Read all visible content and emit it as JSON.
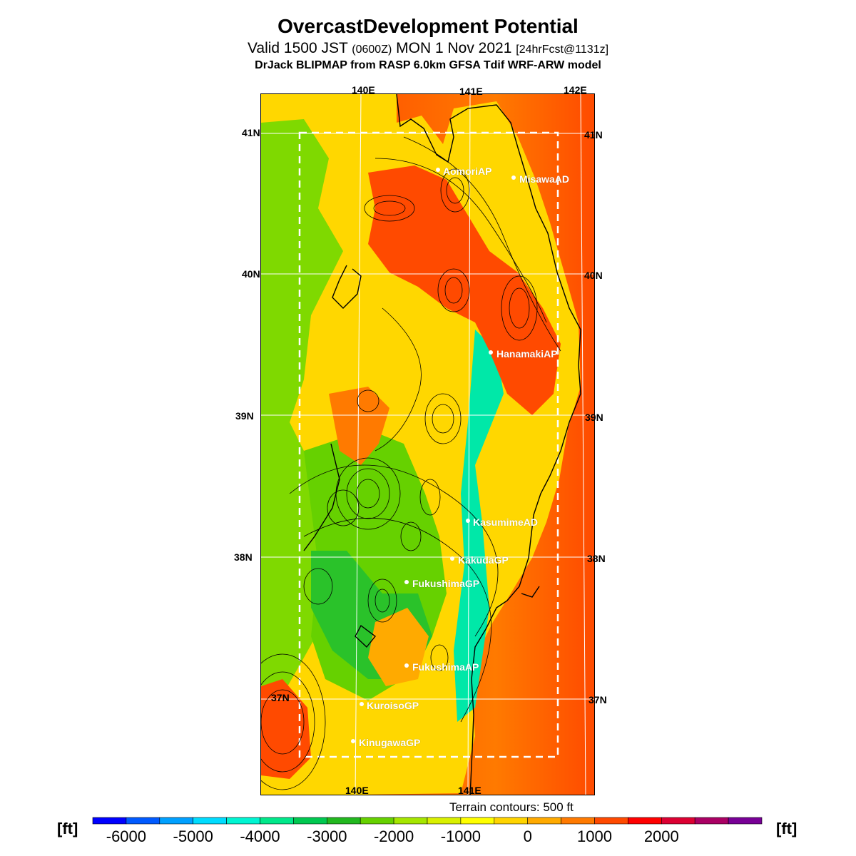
{
  "header": {
    "title": "OvercastDevelopment Potential",
    "valid_prefix": "Valid 1500 JST",
    "utc": "(0600Z)",
    "valid_date": "MON 1 Nov 2021",
    "forecast_tag": "[24hrFcst@1131z]",
    "model_line": "DrJack BLIPMAP from RASP 6.0km GFSA Tdif WRF-ARW model"
  },
  "map": {
    "lon_labels_top": [
      "140E",
      "141E",
      "142E"
    ],
    "lon_labels_bottom": [
      "140E",
      "141E"
    ],
    "lat_labels_left": [
      "41N",
      "40N",
      "39N",
      "38N",
      "37N"
    ],
    "lat_labels_right": [
      "41N",
      "40N",
      "39N",
      "38N",
      "37N"
    ],
    "stations": [
      "AomoriAP",
      "MisawaAD",
      "HanamakiAP",
      "KasumimeAD",
      "KakudaGP",
      "FukushimaGP",
      "FukushimaAP",
      "KuroisoGP",
      "KinugawaGP"
    ],
    "colors": {
      "ocean_warm": "#ff4a00",
      "ocean_hot": "#ff0000",
      "land_mid": "#ffd700",
      "land_green": "#7fd900",
      "land_dark": "#2ac22a",
      "land_cyan": "#00e8a8"
    }
  },
  "footer": {
    "contour_note": "Terrain contours: 500 ft",
    "unit_left": "[ft]",
    "unit_right": "[ft]",
    "scale_ticks": [
      "-6000",
      "-5000",
      "-4000",
      "-3000",
      "-2000",
      "-1000",
      "0",
      "1000",
      "2000"
    ],
    "scale_colors": [
      "#0000ff",
      "#005aff",
      "#00a0ff",
      "#00dcff",
      "#00f5d2",
      "#00e88a",
      "#00c850",
      "#22b81f",
      "#66d100",
      "#a5e600",
      "#d9f000",
      "#ffff00",
      "#ffd400",
      "#ffaa00",
      "#ff7a00",
      "#ff4a00",
      "#ff0000",
      "#dc0032",
      "#aa0064",
      "#780096"
    ]
  }
}
